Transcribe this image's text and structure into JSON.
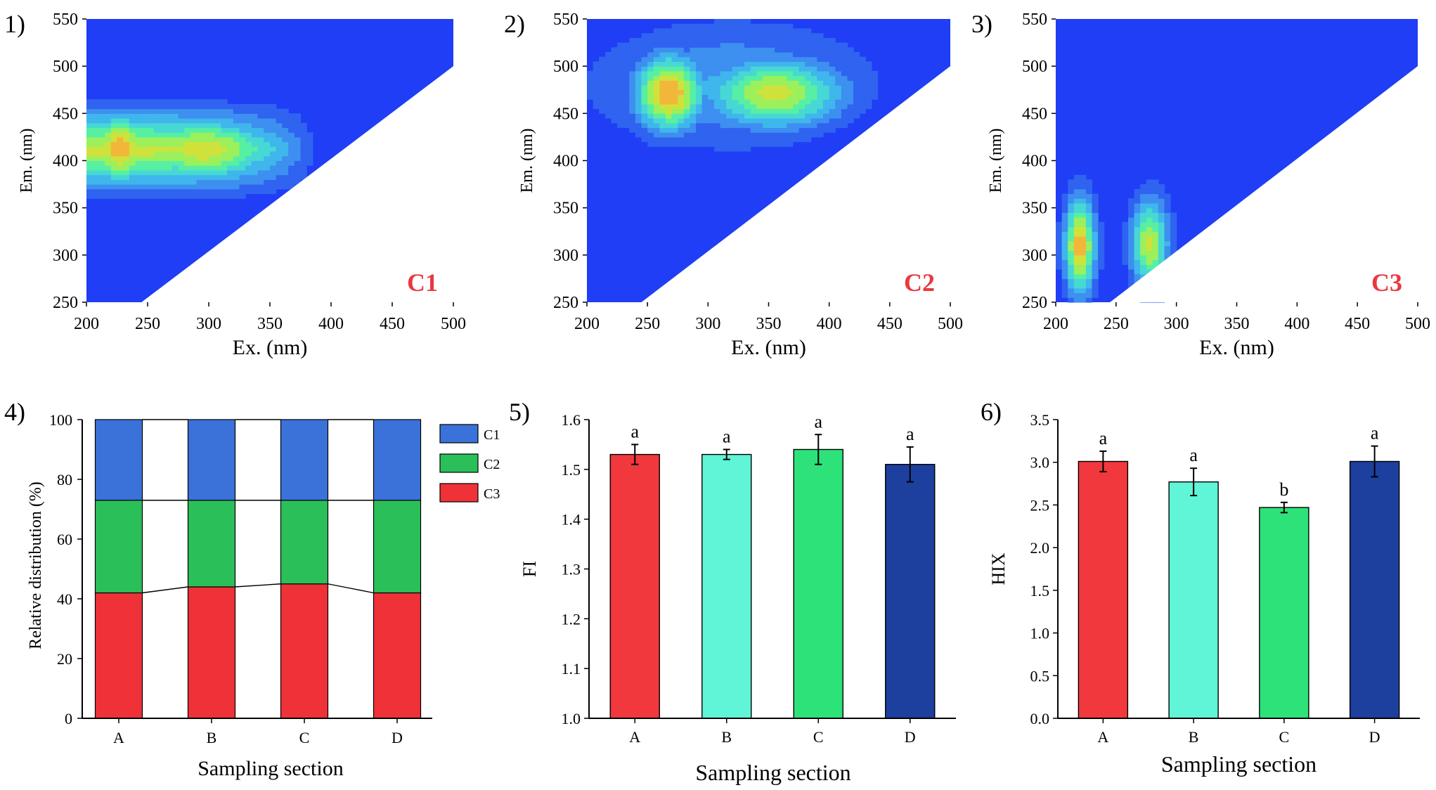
{
  "panels": {
    "p1": {
      "tag": "1)",
      "label": "C1"
    },
    "p2": {
      "tag": "2)",
      "label": "C2"
    },
    "p3": {
      "tag": "3)",
      "label": "C3"
    },
    "p4": {
      "tag": "4)"
    },
    "p5": {
      "tag": "5)"
    },
    "p6": {
      "tag": "6)"
    }
  },
  "colors": {
    "background_blue": "#1f3ef5",
    "label_red": "#e8393f",
    "c1": "#3b72d9",
    "c2": "#2bbf5a",
    "c3": "#ee3238",
    "bar_a": "#f0383d",
    "bar_b": "#5ff5d6",
    "bar_c": "#2ee27a",
    "bar_d": "#1d3f9d",
    "contour_levels": [
      "#1f3ef5",
      "#2f63f0",
      "#3d8ff0",
      "#3fb6ec",
      "#47d8d4",
      "#57efa4",
      "#9bf05c",
      "#cfe23c",
      "#f2b63a"
    ]
  },
  "chart_data": [
    {
      "id": "p1",
      "type": "heatmap",
      "title": "",
      "xlabel": "Ex. (nm)",
      "ylabel": "Em. (nm)",
      "xlim": [
        200,
        500
      ],
      "ylim": [
        250,
        550
      ],
      "xticks": [
        200,
        250,
        300,
        350,
        400,
        450,
        500
      ],
      "yticks": [
        250,
        300,
        350,
        400,
        450,
        500,
        550
      ],
      "annotation": "C1",
      "peaks": [
        {
          "ex": 227,
          "em": 413,
          "intensity": 1.0
        },
        {
          "ex": 295,
          "em": 412,
          "intensity": 0.93
        }
      ]
    },
    {
      "id": "p2",
      "type": "heatmap",
      "title": "",
      "xlabel": "Ex. (nm)",
      "ylabel": "Em. (nm)",
      "xlim": [
        200,
        500
      ],
      "ylim": [
        250,
        550
      ],
      "xticks": [
        200,
        250,
        300,
        350,
        400,
        450,
        500
      ],
      "yticks": [
        250,
        300,
        350,
        400,
        450,
        500,
        550
      ],
      "annotation": "C2",
      "peaks": [
        {
          "ex": 268,
          "em": 472,
          "intensity": 1.0
        },
        {
          "ex": 355,
          "em": 472,
          "intensity": 0.8
        }
      ]
    },
    {
      "id": "p3",
      "type": "heatmap",
      "title": "",
      "xlabel": "Ex. (nm)",
      "ylabel": "Em. (nm)",
      "xlim": [
        200,
        500
      ],
      "ylim": [
        250,
        550
      ],
      "xticks": [
        200,
        250,
        300,
        350,
        400,
        450,
        500
      ],
      "yticks": [
        250,
        300,
        350,
        400,
        450,
        500,
        550
      ],
      "annotation": "C3",
      "peaks": [
        {
          "ex": 220,
          "em": 305,
          "intensity": 0.95
        },
        {
          "ex": 278,
          "em": 305,
          "intensity": 0.78
        }
      ]
    },
    {
      "id": "p4",
      "type": "bar",
      "stacked": true,
      "title": "",
      "xlabel": "Sampling section",
      "ylabel": "Relative distribution (%)",
      "categories": [
        "A",
        "B",
        "C",
        "D"
      ],
      "ylim": [
        0,
        100
      ],
      "yticks": [
        0,
        20,
        40,
        60,
        80,
        100
      ],
      "legend_position": "top-right",
      "series": [
        {
          "name": "C3",
          "values": [
            42,
            44,
            45,
            42
          ]
        },
        {
          "name": "C2",
          "values": [
            31,
            29,
            28,
            31
          ]
        },
        {
          "name": "C1",
          "values": [
            27,
            27,
            27,
            27
          ]
        }
      ]
    },
    {
      "id": "p5",
      "type": "bar",
      "title": "",
      "xlabel": "",
      "ylabel": "FI",
      "categories": [
        "A",
        "B",
        "C",
        "D"
      ],
      "values": [
        1.53,
        1.53,
        1.54,
        1.51
      ],
      "errors": [
        0.02,
        0.01,
        0.03,
        0.035
      ],
      "letters": [
        "a",
        "a",
        "a",
        "a"
      ],
      "ylim": [
        1.0,
        1.6
      ],
      "yticks": [
        "1.0",
        "1.1",
        "1.2",
        "1.3",
        "1.4",
        "1.5",
        "1.6"
      ]
    },
    {
      "id": "p6",
      "type": "bar",
      "title": "",
      "xlabel": "Sampling section",
      "ylabel": "HIX",
      "categories": [
        "A",
        "B",
        "C",
        "D"
      ],
      "values": [
        3.01,
        2.77,
        2.47,
        3.01
      ],
      "errors": [
        0.12,
        0.16,
        0.06,
        0.18
      ],
      "letters": [
        "a",
        "a",
        "b",
        "a"
      ],
      "ylim": [
        0,
        3.5
      ],
      "yticks": [
        "0.0",
        "0.5",
        "1.0",
        "1.5",
        "2.0",
        "2.5",
        "3.0",
        "3.5"
      ]
    }
  ]
}
